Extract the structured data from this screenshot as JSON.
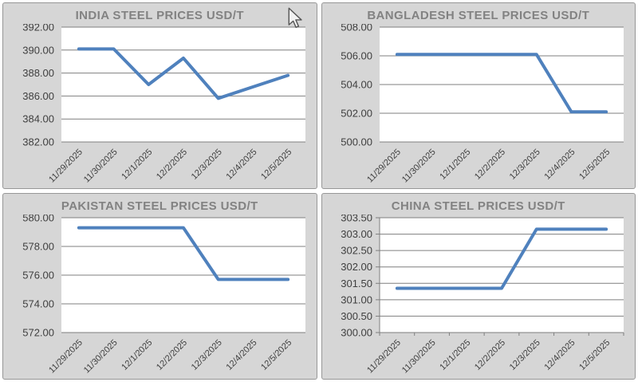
{
  "styles": {
    "line_color": "#4F81BD",
    "panel_bg": "#D6D6D6",
    "plot_bg": "#FFFFFF",
    "grid_color": "#7F7F7F",
    "axis_color": "#7F7F7F",
    "title_color": "#828282",
    "label_color": "#3F3F3F",
    "border_color": "#979797"
  },
  "cursor": {
    "present": true,
    "type": "arrow-pointer"
  },
  "chart_data": [
    {
      "id": "india",
      "type": "line",
      "title": "INDIA STEEL PRICES USD/T",
      "categories": [
        "11/29/2025",
        "11/30/2025",
        "12/1/2025",
        "12/2/2025",
        "12/3/2025",
        "12/4/2025",
        "12/5/2025"
      ],
      "values": [
        390.1,
        390.1,
        387.0,
        389.3,
        385.8,
        386.8,
        387.8
      ],
      "xlabel": "",
      "ylabel": "",
      "ylim": [
        382,
        392
      ],
      "ytick_step": 2,
      "ytick_decimals": 2,
      "grid": true,
      "axis_ticks": false,
      "legend": "none",
      "line_color": "#4F81BD"
    },
    {
      "id": "bangladesh",
      "type": "line",
      "title": "BANGLADESH STEEL PRICES USD/T",
      "categories": [
        "11/29/2025",
        "11/30/2025",
        "12/1/2025",
        "12/2/2025",
        "12/3/2025",
        "12/4/2025",
        "12/5/2025"
      ],
      "values": [
        506.1,
        506.1,
        506.1,
        506.1,
        506.1,
        502.1,
        502.1
      ],
      "xlabel": "",
      "ylabel": "",
      "ylim": [
        500,
        508
      ],
      "ytick_step": 2,
      "ytick_decimals": 2,
      "grid": true,
      "axis_ticks": false,
      "legend": "none",
      "line_color": "#4F81BD"
    },
    {
      "id": "pakistan",
      "type": "line",
      "title": "PAKISTAN STEEL PRICES USD/T",
      "categories": [
        "11/29/2025",
        "11/30/2025",
        "12/1/2025",
        "12/2/2025",
        "12/3/2025",
        "12/4/2025",
        "12/5/2025"
      ],
      "values": [
        579.3,
        579.3,
        579.3,
        579.3,
        575.7,
        575.7,
        575.7
      ],
      "xlabel": "",
      "ylabel": "",
      "ylim": [
        572,
        580
      ],
      "ytick_step": 2,
      "ytick_decimals": 2,
      "grid": true,
      "axis_ticks": false,
      "legend": "none",
      "line_color": "#4F81BD"
    },
    {
      "id": "china",
      "type": "line",
      "title": "CHINA STEEL PRICES USD/T",
      "categories": [
        "11/29/2025",
        "11/30/2025",
        "12/1/2025",
        "12/2/2025",
        "12/3/2025",
        "12/4/2025",
        "12/5/2025"
      ],
      "values": [
        301.35,
        301.35,
        301.35,
        301.35,
        303.15,
        303.15,
        303.15
      ],
      "xlabel": "",
      "ylabel": "",
      "ylim": [
        300,
        303.5
      ],
      "ytick_step": 0.5,
      "ytick_decimals": 2,
      "grid": true,
      "axis_ticks": true,
      "legend": "none",
      "line_color": "#4F81BD"
    }
  ]
}
